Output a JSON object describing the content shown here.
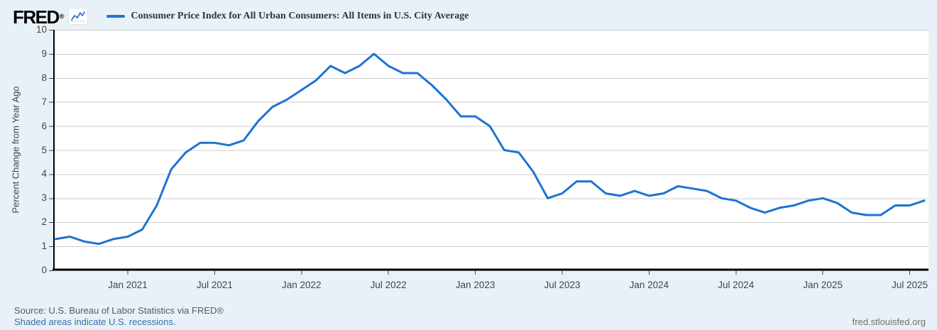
{
  "app": {
    "background": "#e9f1f8"
  },
  "header": {
    "logo": "FRED",
    "logo_registered": "®",
    "series": {
      "label": "Consumer Price Index for All Urban Consumers: All Items in U.S. City Average",
      "color": "#1e73d2"
    }
  },
  "chart_data": {
    "type": "line",
    "title": "Consumer Price Index for All Urban Consumers: All Items in U.S. City Average",
    "ylabel": "Percent Change from Year Ago",
    "xlabel": "",
    "ylim": [
      0,
      10
    ],
    "y_ticks": [
      0,
      1,
      2,
      3,
      4,
      5,
      6,
      7,
      8,
      9,
      10
    ],
    "grid": true,
    "legend_position": "top-left",
    "line_color": "#1e73d2",
    "grid_color": "#cccccc",
    "axis_color": "#000000",
    "plot_background": "#ffffff",
    "x_frequency": "monthly",
    "x_start": "2020-08",
    "x_end": "2025-08",
    "x_tick_labels": [
      {
        "label": "Jan 2021",
        "month_index": 5
      },
      {
        "label": "Jul 2021",
        "month_index": 11
      },
      {
        "label": "Jan 2022",
        "month_index": 17
      },
      {
        "label": "Jul 2022",
        "month_index": 23
      },
      {
        "label": "Jan 2023",
        "month_index": 29
      },
      {
        "label": "Jul 2023",
        "month_index": 35
      },
      {
        "label": "Jan 2024",
        "month_index": 41
      },
      {
        "label": "Jul 2024",
        "month_index": 47
      },
      {
        "label": "Jan 2025",
        "month_index": 53
      },
      {
        "label": "Jul 2025",
        "month_index": 59
      }
    ],
    "series": [
      {
        "name": "Consumer Price Index for All Urban Consumers: All Items in U.S. City Average",
        "x": [
          "2020-08",
          "2020-09",
          "2020-10",
          "2020-11",
          "2020-12",
          "2021-01",
          "2021-02",
          "2021-03",
          "2021-04",
          "2021-05",
          "2021-06",
          "2021-07",
          "2021-08",
          "2021-09",
          "2021-10",
          "2021-11",
          "2021-12",
          "2022-01",
          "2022-02",
          "2022-03",
          "2022-04",
          "2022-05",
          "2022-06",
          "2022-07",
          "2022-08",
          "2022-09",
          "2022-10",
          "2022-11",
          "2022-12",
          "2023-01",
          "2023-02",
          "2023-03",
          "2023-04",
          "2023-05",
          "2023-06",
          "2023-07",
          "2023-08",
          "2023-09",
          "2023-10",
          "2023-11",
          "2023-12",
          "2024-01",
          "2024-02",
          "2024-03",
          "2024-04",
          "2024-05",
          "2024-06",
          "2024-07",
          "2024-08",
          "2024-09",
          "2024-10",
          "2024-11",
          "2024-12",
          "2025-01",
          "2025-02",
          "2025-03",
          "2025-04",
          "2025-05",
          "2025-06",
          "2025-07",
          "2025-08"
        ],
        "values": [
          1.3,
          1.4,
          1.2,
          1.1,
          1.3,
          1.4,
          1.7,
          2.7,
          4.2,
          4.9,
          5.3,
          5.3,
          5.2,
          5.4,
          6.2,
          6.8,
          7.1,
          7.5,
          7.9,
          8.5,
          8.2,
          8.5,
          9.0,
          8.5,
          8.2,
          8.2,
          7.7,
          7.1,
          6.4,
          6.4,
          6.0,
          5.0,
          4.9,
          4.1,
          3.0,
          3.2,
          3.7,
          3.7,
          3.2,
          3.1,
          3.3,
          3.1,
          3.2,
          3.5,
          3.4,
          3.3,
          3.0,
          2.9,
          2.6,
          2.4,
          2.6,
          2.7,
          2.9,
          3.0,
          2.8,
          2.4,
          2.3,
          2.3,
          2.7,
          2.7,
          2.9
        ]
      }
    ]
  },
  "footer": {
    "source": "Source: U.S. Bureau of Labor Statistics via FRED®",
    "recessions_note": "Shaded areas indicate U.S. recessions.",
    "site_url": "fred.stlouisfed.org"
  }
}
